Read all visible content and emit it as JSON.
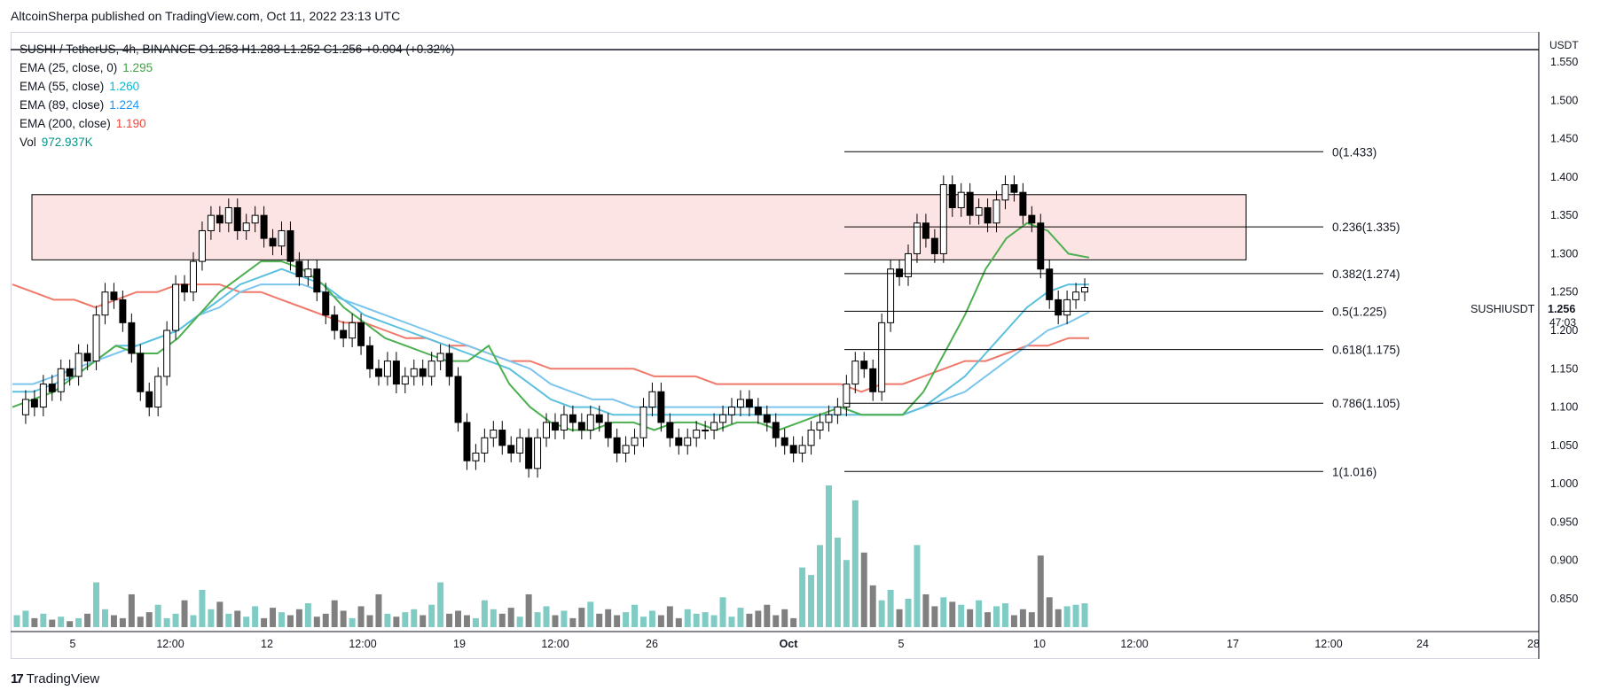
{
  "publisher": "AltcoinSherpa published on TradingView.com, Oct 11, 2022 23:13 UTC",
  "legend": {
    "header": "SUSHI / TetherUS, 4h, BINANCE  O1.253  H1.283  L1.252  C1.256  +0.004 (+0.32%)",
    "indicators": [
      {
        "label": "EMA (25, close, 0)",
        "value": "1.295",
        "color": "#43a047"
      },
      {
        "label": "EMA (55, close)",
        "value": "1.260",
        "color": "#00bcd4"
      },
      {
        "label": "EMA (89, close)",
        "value": "1.224",
        "color": "#2196f3"
      },
      {
        "label": "EMA (200, close)",
        "value": "1.190",
        "color": "#f44336"
      },
      {
        "label": "Vol",
        "value": "972.937K",
        "color": "#009688"
      }
    ]
  },
  "footer": {
    "logo_mark": "17",
    "logo_text": "TradingView"
  },
  "chart_data": {
    "type": "candlestick",
    "symbol": "SUSHIUSDT",
    "currency": "USDT",
    "timeframe": "4h",
    "last_price": "1.256",
    "countdown": "47:03",
    "ylim": [
      0.85,
      1.6
    ],
    "y_ticks": [
      "1.550",
      "1.500",
      "1.450",
      "1.400",
      "1.350",
      "1.300",
      "1.250",
      "1.200",
      "1.150",
      "1.100",
      "1.050",
      "1.000",
      "0.950",
      "0.900",
      "0.850"
    ],
    "x_ticks": [
      "5",
      "12:00",
      "12",
      "12:00",
      "19",
      "12:00",
      "26",
      "Oct",
      "5",
      "10",
      "12:00",
      "17",
      "12:00",
      "24",
      "28"
    ],
    "fib_levels": [
      {
        "label": "0(1.433)",
        "value": 1.433
      },
      {
        "label": "0.236(1.335)",
        "value": 1.335
      },
      {
        "label": "0.382(1.274)",
        "value": 1.274
      },
      {
        "label": "0.5(1.225)",
        "value": 1.225
      },
      {
        "label": "0.618(1.175)",
        "value": 1.175
      },
      {
        "label": "0.786(1.105)",
        "value": 1.105
      },
      {
        "label": "1(1.016)",
        "value": 1.016
      }
    ],
    "resistance_zone": {
      "low": 1.292,
      "high": 1.377
    },
    "price_path": [
      1.09,
      1.11,
      1.1,
      1.13,
      1.12,
      1.15,
      1.14,
      1.17,
      1.16,
      1.22,
      1.25,
      1.24,
      1.21,
      1.17,
      1.12,
      1.1,
      1.14,
      1.2,
      1.26,
      1.25,
      1.29,
      1.33,
      1.35,
      1.34,
      1.36,
      1.33,
      1.34,
      1.35,
      1.32,
      1.31,
      1.33,
      1.29,
      1.27,
      1.28,
      1.25,
      1.22,
      1.2,
      1.19,
      1.21,
      1.18,
      1.15,
      1.14,
      1.16,
      1.13,
      1.14,
      1.15,
      1.14,
      1.16,
      1.17,
      1.14,
      1.08,
      1.03,
      1.04,
      1.06,
      1.07,
      1.05,
      1.04,
      1.06,
      1.02,
      1.06,
      1.08,
      1.07,
      1.09,
      1.08,
      1.07,
      1.09,
      1.08,
      1.06,
      1.04,
      1.05,
      1.06,
      1.1,
      1.12,
      1.08,
      1.06,
      1.05,
      1.06,
      1.07,
      1.07,
      1.08,
      1.09,
      1.1,
      1.11,
      1.1,
      1.09,
      1.08,
      1.06,
      1.05,
      1.04,
      1.05,
      1.07,
      1.08,
      1.09,
      1.1,
      1.13,
      1.16,
      1.15,
      1.12,
      1.21,
      1.28,
      1.27,
      1.3,
      1.34,
      1.32,
      1.3,
      1.39,
      1.36,
      1.38,
      1.35,
      1.36,
      1.34,
      1.37,
      1.39,
      1.38,
      1.35,
      1.34,
      1.28,
      1.24,
      1.22,
      1.24,
      1.25,
      1.256
    ],
    "ema25": [
      1.1,
      1.11,
      1.12,
      1.14,
      1.16,
      1.18,
      1.17,
      1.17,
      1.19,
      1.22,
      1.25,
      1.27,
      1.29,
      1.29,
      1.28,
      1.26,
      1.23,
      1.21,
      1.19,
      1.18,
      1.17,
      1.16,
      1.16,
      1.18,
      1.13,
      1.1,
      1.08,
      1.07,
      1.07,
      1.08,
      1.08,
      1.07,
      1.08,
      1.08,
      1.07,
      1.08,
      1.08,
      1.07,
      1.08,
      1.09,
      1.1,
      1.09,
      1.09,
      1.09,
      1.12,
      1.17,
      1.22,
      1.28,
      1.32,
      1.34,
      1.33,
      1.3,
      1.295
    ],
    "ema55": [
      1.12,
      1.12,
      1.13,
      1.14,
      1.16,
      1.18,
      1.18,
      1.19,
      1.2,
      1.22,
      1.24,
      1.26,
      1.27,
      1.28,
      1.27,
      1.26,
      1.24,
      1.22,
      1.21,
      1.2,
      1.19,
      1.18,
      1.17,
      1.16,
      1.15,
      1.13,
      1.11,
      1.1,
      1.1,
      1.09,
      1.09,
      1.09,
      1.09,
      1.09,
      1.09,
      1.09,
      1.09,
      1.09,
      1.09,
      1.09,
      1.09,
      1.09,
      1.09,
      1.09,
      1.1,
      1.12,
      1.14,
      1.17,
      1.2,
      1.23,
      1.25,
      1.26,
      1.26
    ],
    "ema89": [
      1.13,
      1.13,
      1.14,
      1.15,
      1.16,
      1.17,
      1.18,
      1.19,
      1.2,
      1.22,
      1.23,
      1.25,
      1.26,
      1.26,
      1.26,
      1.25,
      1.24,
      1.23,
      1.22,
      1.21,
      1.2,
      1.19,
      1.18,
      1.17,
      1.16,
      1.15,
      1.13,
      1.12,
      1.11,
      1.11,
      1.1,
      1.1,
      1.1,
      1.1,
      1.1,
      1.1,
      1.1,
      1.1,
      1.1,
      1.1,
      1.1,
      1.09,
      1.09,
      1.09,
      1.1,
      1.11,
      1.12,
      1.14,
      1.16,
      1.18,
      1.2,
      1.21,
      1.224
    ],
    "ema200": [
      1.26,
      1.25,
      1.24,
      1.24,
      1.23,
      1.24,
      1.25,
      1.25,
      1.26,
      1.26,
      1.26,
      1.25,
      1.25,
      1.24,
      1.23,
      1.22,
      1.21,
      1.21,
      1.2,
      1.19,
      1.19,
      1.18,
      1.18,
      1.17,
      1.16,
      1.16,
      1.15,
      1.15,
      1.15,
      1.15,
      1.15,
      1.14,
      1.14,
      1.14,
      1.13,
      1.13,
      1.13,
      1.13,
      1.13,
      1.13,
      1.13,
      1.12,
      1.13,
      1.13,
      1.14,
      1.15,
      1.16,
      1.16,
      1.17,
      1.18,
      1.18,
      1.19,
      1.19
    ],
    "volume": [
      8,
      11,
      6,
      9,
      5,
      7,
      4,
      6,
      9,
      30,
      12,
      8,
      6,
      22,
      7,
      10,
      15,
      6,
      9,
      18,
      8,
      25,
      12,
      17,
      9,
      11,
      7,
      14,
      6,
      13,
      10,
      8,
      12,
      16,
      7,
      9,
      18,
      11,
      6,
      14,
      8,
      22,
      9,
      7,
      10,
      12,
      8,
      15,
      30,
      9,
      11,
      8,
      6,
      18,
      12,
      9,
      13,
      7,
      22,
      10,
      14,
      8,
      11,
      6,
      13,
      17,
      9,
      12,
      8,
      10,
      15,
      7,
      11,
      8,
      14,
      6,
      12,
      9,
      10,
      8,
      20,
      7,
      13,
      9,
      11,
      15,
      8,
      12,
      6,
      40,
      35,
      55,
      95,
      60,
      45,
      85,
      50,
      28,
      18,
      25,
      12,
      19,
      55,
      22,
      14,
      20,
      17,
      15,
      12,
      18,
      10,
      14,
      16,
      8,
      12,
      10,
      48,
      20,
      12,
      14,
      15,
      16
    ],
    "volume_up_color": "#80cbc4",
    "volume_down_color": "#808080",
    "up_color": "#ffffff",
    "down_color": "#000000",
    "zone_fill": "#fce4e4"
  }
}
